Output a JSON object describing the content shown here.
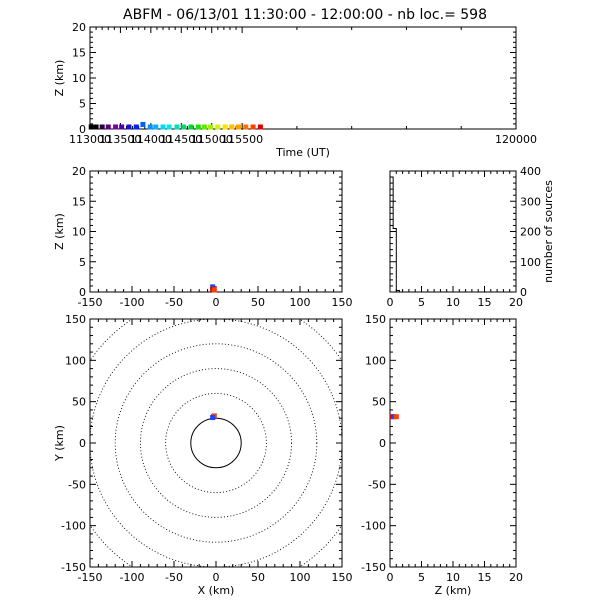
{
  "title": "ABFM - 06/13/01 11:30:00 - 12:00:00 - nb loc.=     598",
  "chart_data": [
    {
      "id": "time-height",
      "type": "scatter",
      "xlabel": "Time (UT)",
      "ylabel": "Z (km)",
      "xlim": [
        113000,
        120000
      ],
      "ylim": [
        0,
        20
      ],
      "xticks": [
        113000,
        113500,
        114000,
        114500,
        115000,
        115500,
        120000
      ],
      "yticks": [
        0,
        5,
        10,
        15,
        20
      ],
      "points": [
        {
          "x": 113020,
          "y": 0.1,
          "color": "#000000"
        },
        {
          "x": 113100,
          "y": 0.1,
          "color": "#000000"
        },
        {
          "x": 113200,
          "y": 0.1,
          "color": "#2a0040"
        },
        {
          "x": 113300,
          "y": 0.1,
          "color": "#5a007a"
        },
        {
          "x": 113420,
          "y": 0.1,
          "color": "#7a0099"
        },
        {
          "x": 113520,
          "y": 0.1,
          "color": "#4a00b0"
        },
        {
          "x": 113640,
          "y": 0.1,
          "color": "#1a10d0"
        },
        {
          "x": 113760,
          "y": 0.1,
          "color": "#0020ff"
        },
        {
          "x": 113870,
          "y": 0.6,
          "color": "#0060ff"
        },
        {
          "x": 113990,
          "y": 0.1,
          "color": "#0090ff"
        },
        {
          "x": 114080,
          "y": 0.1,
          "color": "#00b0ff"
        },
        {
          "x": 114200,
          "y": 0.1,
          "color": "#00d8ff"
        },
        {
          "x": 114300,
          "y": 0.1,
          "color": "#00e8e8"
        },
        {
          "x": 114430,
          "y": 0.1,
          "color": "#00e0b0"
        },
        {
          "x": 114540,
          "y": 0.1,
          "color": "#00d870"
        },
        {
          "x": 114660,
          "y": 0.1,
          "color": "#00d830"
        },
        {
          "x": 114780,
          "y": 0.1,
          "color": "#20e000"
        },
        {
          "x": 114880,
          "y": 0.1,
          "color": "#60e800"
        },
        {
          "x": 114980,
          "y": 0.1,
          "color": "#a0f000"
        },
        {
          "x": 115100,
          "y": 0.1,
          "color": "#d8f000"
        },
        {
          "x": 115220,
          "y": 0.1,
          "color": "#ffe000"
        },
        {
          "x": 115330,
          "y": 0.1,
          "color": "#ffc000"
        },
        {
          "x": 115440,
          "y": 0.1,
          "color": "#ffa000"
        },
        {
          "x": 115560,
          "y": 0.1,
          "color": "#ff7000"
        },
        {
          "x": 115680,
          "y": 0.1,
          "color": "#ff4000"
        },
        {
          "x": 115800,
          "y": 0.1,
          "color": "#e00000"
        }
      ]
    },
    {
      "id": "x-height",
      "type": "scatter",
      "xlabel": "",
      "ylabel": "Z (km)",
      "xlim": [
        -150,
        150
      ],
      "ylim": [
        0,
        20
      ],
      "xticks": [
        -150,
        -100,
        -50,
        0,
        50,
        100,
        150
      ],
      "yticks": [
        0,
        5,
        10,
        15,
        20
      ],
      "points": [
        {
          "x": -4,
          "y": 0.6,
          "color": "#2040ff"
        },
        {
          "x": -4,
          "y": 0.2,
          "color": "#e00000"
        },
        {
          "x": -2,
          "y": 0.1,
          "color": "#ff4000"
        }
      ]
    },
    {
      "id": "height-histogram",
      "type": "line",
      "xlabel": "",
      "ylabel": "number of sources",
      "xlim": [
        0,
        20
      ],
      "ylim": [
        0,
        400
      ],
      "xticks": [
        0,
        5,
        10,
        15,
        20
      ],
      "yticks": [
        0,
        100,
        200,
        300,
        400
      ],
      "step": [
        {
          "x": 0,
          "y": 380
        },
        {
          "x": 0.5,
          "y": 210
        },
        {
          "x": 1.0,
          "y": 5
        },
        {
          "x": 1.5,
          "y": 0
        },
        {
          "x": 20,
          "y": 0
        }
      ]
    },
    {
      "id": "plan-view",
      "type": "scatter",
      "xlabel": "X (km)",
      "ylabel": "Y (km)",
      "xlim": [
        -150,
        150
      ],
      "ylim": [
        -150,
        150
      ],
      "xticks": [
        -150,
        -100,
        -50,
        0,
        50,
        100,
        150
      ],
      "yticks": [
        -150,
        -100,
        -50,
        0,
        50,
        100,
        150
      ],
      "range_rings_km": [
        30,
        60,
        90,
        120,
        150,
        180
      ],
      "points": [
        {
          "x": -3,
          "y": 30,
          "color": "#e00000"
        },
        {
          "x": -2,
          "y": 31,
          "color": "#ff4000"
        },
        {
          "x": -4,
          "y": 29,
          "color": "#2040ff"
        }
      ]
    },
    {
      "id": "height-y",
      "type": "scatter",
      "xlabel": "Z (km)",
      "ylabel": "",
      "xlim": [
        0,
        20
      ],
      "ylim": [
        -150,
        150
      ],
      "xticks": [
        0,
        5,
        10,
        15,
        20
      ],
      "yticks": [
        -150,
        -100,
        -50,
        0,
        50,
        100,
        150
      ],
      "points": [
        {
          "x": 0.3,
          "y": 30,
          "color": "#e00000"
        },
        {
          "x": 0.6,
          "y": 30,
          "color": "#2040ff"
        },
        {
          "x": 1.0,
          "y": 30,
          "color": "#ff4000"
        }
      ]
    }
  ]
}
